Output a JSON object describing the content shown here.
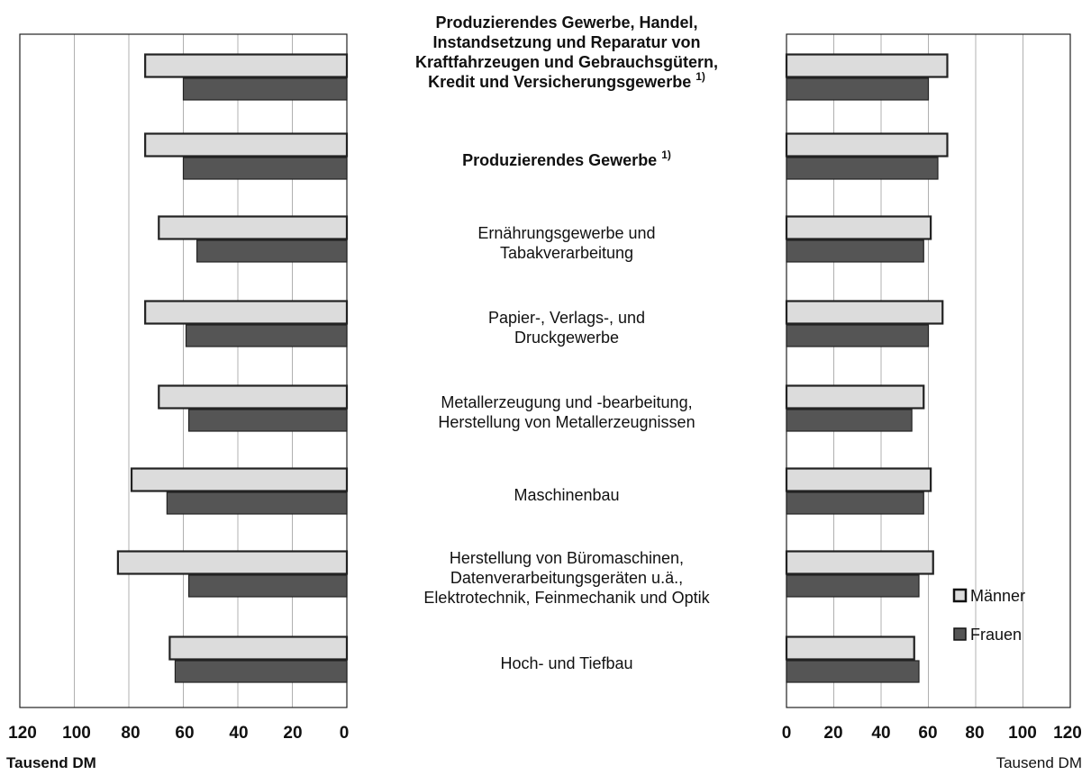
{
  "chart_data": [
    {
      "type": "bar",
      "orientation": "horizontal",
      "direction": "reversed",
      "xlabel": "Tausend DM",
      "xlim": [
        0,
        120
      ],
      "xticks": [
        "120",
        "100",
        "80",
        "60",
        "40",
        "20",
        "0"
      ],
      "grid": true,
      "categories": [
        "Produzierendes Gewerbe, Handel, Instandsetzung und Reparatur von Kraftfahrzeugen und Gebrauchsgütern, Kredit und Versicherungsgewerbe 1)",
        "Produzierendes Gewerbe 1)",
        "Ernährungsgewerbe und Tabakverarbeitung",
        "Papier-, Verlags-, und Druckgewerbe",
        "Metallerzeugung und -bearbeitung, Herstellung von Metallerzeugnissen",
        "Maschinenbau",
        "Herstellung von Büromaschinen, Datenverarbeitungsgeräten u.ä., Elektrotechnik, Feinmechanik und Optik",
        "Hoch- und Tiefbau"
      ],
      "series": [
        {
          "name": "Männer",
          "color": "#dcdcdc",
          "values": [
            74,
            74,
            69,
            74,
            69,
            79,
            84,
            65
          ]
        },
        {
          "name": "Frauen",
          "color": "#555555",
          "values": [
            60,
            60,
            55,
            59,
            58,
            66,
            58,
            63
          ]
        }
      ]
    },
    {
      "type": "bar",
      "orientation": "horizontal",
      "xlabel": "Tausend DM",
      "xlim": [
        0,
        120
      ],
      "xticks": [
        "0",
        "20",
        "40",
        "60",
        "80",
        "100",
        "120"
      ],
      "grid": true,
      "legend": "right",
      "categories": [
        "Produzierendes Gewerbe, Handel, Instandsetzung und Reparatur von Kraftfahrzeugen und Gebrauchsgütern, Kredit und Versicherungsgewerbe 1)",
        "Produzierendes Gewerbe 1)",
        "Ernährungsgewerbe und Tabakverarbeitung",
        "Papier-, Verlags-, und Druckgewerbe",
        "Metallerzeugung und -bearbeitung, Herstellung von Metallerzeugnissen",
        "Maschinenbau",
        "Herstellung von Büromaschinen, Datenverarbeitungsgeräten u.ä., Elektrotechnik, Feinmechanik und Optik",
        "Hoch- und Tiefbau"
      ],
      "series": [
        {
          "name": "Männer",
          "color": "#dcdcdc",
          "values": [
            68,
            68,
            61,
            66,
            58,
            61,
            62,
            54
          ]
        },
        {
          "name": "Frauen",
          "color": "#555555",
          "values": [
            60,
            64,
            58,
            60,
            53,
            58,
            56,
            56
          ]
        }
      ]
    }
  ],
  "labels": [
    {
      "lines": [
        "Produzierendes Gewerbe, Handel,",
        "Instandsetzung und Reparatur von",
        "Kraftfahrzeugen und Gebrauchsgütern,",
        "Kredit und Versicherungsgewerbe"
      ],
      "footnote": "1)",
      "bold": true
    },
    {
      "lines": [
        "Produzierendes Gewerbe"
      ],
      "footnote": "1)",
      "bold": true
    },
    {
      "lines": [
        "Ernährungsgewerbe und",
        "Tabakverarbeitung"
      ],
      "bold": false
    },
    {
      "lines": [
        "Papier-, Verlags-, und",
        "Druckgewerbe"
      ],
      "bold": false
    },
    {
      "lines": [
        "Metallerzeugung und -bearbeitung,",
        "Herstellung von Metallerzeugnissen"
      ],
      "bold": false
    },
    {
      "lines": [
        "Maschinenbau"
      ],
      "bold": false
    },
    {
      "lines": [
        "Herstellung von Büromaschinen,",
        "Datenverarbeitungsgeräten u.ä.,",
        "Elektrotechnik, Feinmechanik und Optik"
      ],
      "bold": false
    },
    {
      "lines": [
        "Hoch- und Tiefbau"
      ],
      "bold": false
    }
  ]
}
